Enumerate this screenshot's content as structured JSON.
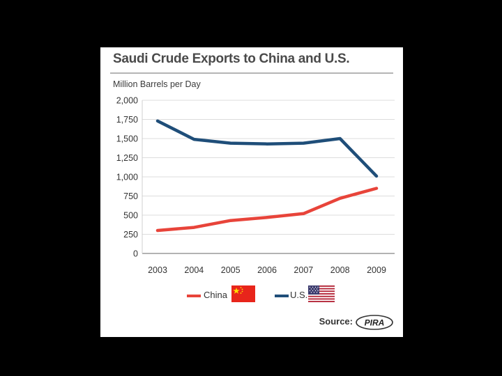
{
  "title": "Saudi Crude Exports to China and U.S.",
  "unit_label": "Million Barrels per Day",
  "source_label": "Source:",
  "source_logo_text": "PIRA",
  "colors": {
    "china": "#e8443a",
    "us": "#1f4e79",
    "flag_red": "#e8251b",
    "flag_star": "#ffde00",
    "gridline": "#dcdcdc"
  },
  "chart_data": {
    "type": "line",
    "title": "Saudi Crude Exports to China and U.S.",
    "ylabel": "Million Barrels per Day",
    "xlabel": "",
    "x": [
      "2003",
      "2004",
      "2005",
      "2006",
      "2007",
      "2008",
      "2009"
    ],
    "ylim": [
      0,
      2000
    ],
    "yticks": [
      0,
      250,
      500,
      750,
      1000,
      1250,
      1500,
      1750,
      2000
    ],
    "ytick_labels": [
      "0",
      "250",
      "500",
      "750",
      "1,000",
      "1,250",
      "1,500",
      "1,750",
      "2,000"
    ],
    "grid": true,
    "legend_position": "bottom",
    "series": [
      {
        "name": "China",
        "color": "#e8443a",
        "icon": "china-flag-icon",
        "values": [
          300,
          340,
          430,
          470,
          520,
          720,
          850
        ]
      },
      {
        "name": "U.S.",
        "color": "#1f4e79",
        "icon": "us-flag-icon",
        "values": [
          1730,
          1490,
          1440,
          1430,
          1440,
          1500,
          1010
        ]
      }
    ]
  }
}
